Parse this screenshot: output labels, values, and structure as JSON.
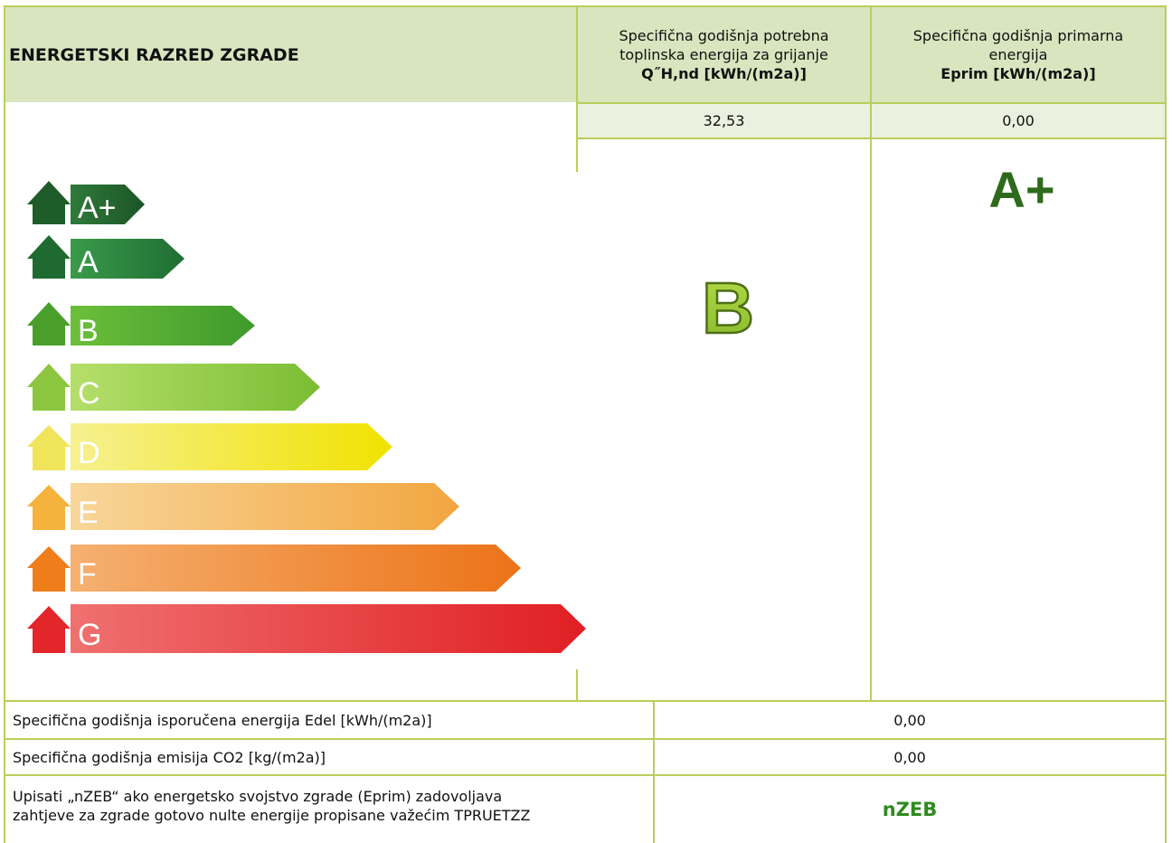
{
  "header": {
    "title": "ENERGETSKI RAZRED ZGRADE",
    "col1": {
      "line1": "Specifična godišnja potrebna",
      "line2": "toplinska energija za grijanje",
      "line3": "Q˝H,nd [kWh/(m2a)]"
    },
    "col2": {
      "line1": "Specifična godišnja primarna",
      "line2": "energija",
      "line3": "Eprim [kWh/(m2a)]"
    }
  },
  "values": {
    "qhnd": "32,53",
    "eprim": "0,00"
  },
  "classes": {
    "qhnd_class": "B",
    "eprim_class": "A+",
    "scale": [
      {
        "label": "A+",
        "color": "#1e5c2a"
      },
      {
        "label": "A",
        "color": "#237a36"
      },
      {
        "label": "B",
        "color": "#4a9f2a"
      },
      {
        "label": "C",
        "color": "#8cc63f"
      },
      {
        "label": "D",
        "color": "#f2e600"
      },
      {
        "label": "E",
        "color": "#f5b23c"
      },
      {
        "label": "F",
        "color": "#ee7d1a"
      },
      {
        "label": "G",
        "color": "#e3262a"
      }
    ]
  },
  "rows": [
    {
      "label": "Specifična godišnja isporučena energija Edel [kWh/(m2a)]",
      "value": "0,00"
    },
    {
      "label": "Specifična godišnja emisija CO2 [kg/(m2a)]",
      "value": "0,00"
    },
    {
      "label_line1": "Upisati „nZEB“ ako energetsko svojstvo zgrade (Eprim) zadovoljava",
      "label_line2": "zahtjeve za zgrade gotovo nulte energije propisane važećim TPRUETZZ",
      "value": "nZEB"
    }
  ]
}
